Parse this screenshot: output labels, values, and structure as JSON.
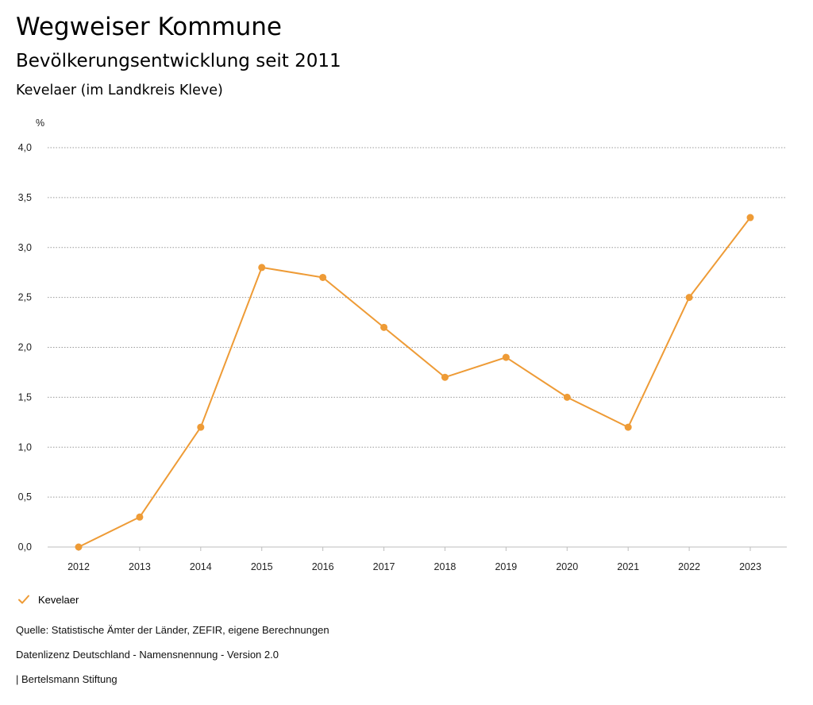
{
  "header": {
    "title": "Wegweiser Kommune",
    "subtitle": "Bevölkerungsentwicklung seit 2011",
    "region": "Kevelaer (im Landkreis Kleve)"
  },
  "chart_data": {
    "type": "line",
    "title": "Bevölkerungsentwicklung seit 2011",
    "ylabel": "%",
    "xlabel": "",
    "ylim": [
      0,
      4
    ],
    "yticks": [
      {
        "value": 0.0,
        "label": "0,0"
      },
      {
        "value": 0.5,
        "label": "0,5"
      },
      {
        "value": 1.0,
        "label": "1,0"
      },
      {
        "value": 1.5,
        "label": "1,5"
      },
      {
        "value": 2.0,
        "label": "2,0"
      },
      {
        "value": 2.5,
        "label": "2,5"
      },
      {
        "value": 3.0,
        "label": "3,0"
      },
      {
        "value": 3.5,
        "label": "3,5"
      },
      {
        "value": 4.0,
        "label": "4,0"
      }
    ],
    "categories": [
      "2012",
      "2013",
      "2014",
      "2015",
      "2016",
      "2017",
      "2018",
      "2019",
      "2020",
      "2021",
      "2022",
      "2023"
    ],
    "series": [
      {
        "name": "Kevelaer",
        "color": "#EE9B36",
        "values": [
          0.0,
          0.3,
          1.2,
          2.8,
          2.7,
          2.2,
          1.7,
          1.9,
          1.5,
          1.2,
          2.5,
          3.3
        ]
      }
    ],
    "grid": true,
    "legend": "bottom-left"
  },
  "legend": {
    "label": "Kevelaer",
    "icon": "checkmark-icon"
  },
  "footer": {
    "source": "Quelle: Statistische Ämter der Länder, ZEFIR, eigene Berechnungen",
    "license": "Datenlizenz Deutschland - Namensnennung - Version 2.0",
    "publisher": "| Bertelsmann Stiftung"
  }
}
